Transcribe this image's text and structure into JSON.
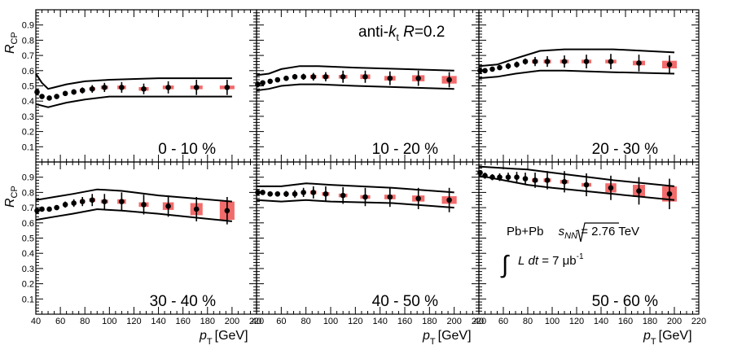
{
  "figure": {
    "y_axis_label": "R",
    "y_axis_label_sub": "CP",
    "x_axis_label": "p",
    "x_axis_label_sub": "T",
    "x_axis_unit": "[GeV]",
    "jet_label": {
      "pre": "anti-",
      "k": "k",
      "k_sub": "t",
      "r": " R",
      "val": "=0.2"
    },
    "collision": {
      "pre": "Pb+Pb",
      "s": "s",
      "s_sub": "NN",
      "post": " = 2.76 TeV"
    },
    "luminosity": {
      "L": "L",
      "dt": "dt",
      "post": " = 7 μb",
      "sup": "-1"
    },
    "colors": {
      "axis": "#000000",
      "marker": "#000000",
      "syst_box": "#f26b6b",
      "band": "#000000"
    }
  },
  "chart_data": [
    {
      "type": "scatter",
      "panel": "0 - 10 %",
      "title": "0 - 10 %",
      "xlim": [
        40,
        220
      ],
      "ylim": [
        0,
        1
      ],
      "x_ticks": [
        "40",
        "60",
        "80",
        "100",
        "120",
        "140",
        "160",
        "180",
        "200",
        "220"
      ],
      "y_ticks": [
        "0.1",
        "0.2",
        "0.3",
        "0.4",
        "0.5",
        "0.6",
        "0.7",
        "0.8",
        "0.9"
      ],
      "points": [
        {
          "x": 41,
          "y": 0.46,
          "yerr": 0.02,
          "syst": 0.01,
          "bw": 3
        },
        {
          "x": 45,
          "y": 0.43,
          "yerr": 0.015,
          "syst": 0.01,
          "bw": 3
        },
        {
          "x": 51,
          "y": 0.42,
          "yerr": 0.012,
          "syst": 0.01,
          "bw": 3
        },
        {
          "x": 57,
          "y": 0.43,
          "yerr": 0.012,
          "syst": 0.01,
          "bw": 3
        },
        {
          "x": 64,
          "y": 0.45,
          "yerr": 0.015,
          "syst": 0.01,
          "bw": 3
        },
        {
          "x": 71,
          "y": 0.46,
          "yerr": 0.018,
          "syst": 0.01,
          "bw": 4
        },
        {
          "x": 78,
          "y": 0.47,
          "yerr": 0.02,
          "syst": 0.01,
          "bw": 4
        },
        {
          "x": 86,
          "y": 0.48,
          "yerr": 0.025,
          "syst": 0.01,
          "bw": 5
        },
        {
          "x": 96,
          "y": 0.49,
          "yerr": 0.03,
          "syst": 0.012,
          "bw": 6
        },
        {
          "x": 110,
          "y": 0.49,
          "yerr": 0.035,
          "syst": 0.012,
          "bw": 7
        },
        {
          "x": 128,
          "y": 0.48,
          "yerr": 0.035,
          "syst": 0.012,
          "bw": 8
        },
        {
          "x": 148,
          "y": 0.49,
          "yerr": 0.04,
          "syst": 0.012,
          "bw": 9
        },
        {
          "x": 171,
          "y": 0.49,
          "yerr": 0.05,
          "syst": 0.012,
          "bw": 10
        },
        {
          "x": 196,
          "y": 0.49,
          "yerr": 0.05,
          "syst": 0.012,
          "bw": 12
        }
      ],
      "band_upper": [
        [
          40,
          0.58
        ],
        [
          45,
          0.52
        ],
        [
          50,
          0.48
        ],
        [
          55,
          0.49
        ],
        [
          65,
          0.51
        ],
        [
          80,
          0.53
        ],
        [
          100,
          0.54
        ],
        [
          140,
          0.55
        ],
        [
          200,
          0.55
        ]
      ],
      "band_lower": [
        [
          40,
          0.38
        ],
        [
          45,
          0.37
        ],
        [
          50,
          0.36
        ],
        [
          55,
          0.37
        ],
        [
          65,
          0.39
        ],
        [
          80,
          0.41
        ],
        [
          100,
          0.43
        ],
        [
          140,
          0.43
        ],
        [
          200,
          0.43
        ]
      ]
    },
    {
      "type": "scatter",
      "panel": "10 - 20 %",
      "title": "10 - 20 %",
      "xlim": [
        40,
        220
      ],
      "ylim": [
        0,
        1
      ],
      "x_ticks": [
        "40",
        "60",
        "80",
        "100",
        "120",
        "140",
        "160",
        "180",
        "200",
        "220"
      ],
      "y_ticks": [
        "0.1",
        "0.2",
        "0.3",
        "0.4",
        "0.5",
        "0.6",
        "0.7",
        "0.8",
        "0.9"
      ],
      "points": [
        {
          "x": 41,
          "y": 0.51,
          "yerr": 0.02,
          "syst": 0.01,
          "bw": 3
        },
        {
          "x": 45,
          "y": 0.52,
          "yerr": 0.015,
          "syst": 0.01,
          "bw": 3
        },
        {
          "x": 51,
          "y": 0.53,
          "yerr": 0.012,
          "syst": 0.01,
          "bw": 3
        },
        {
          "x": 57,
          "y": 0.54,
          "yerr": 0.012,
          "syst": 0.01,
          "bw": 3
        },
        {
          "x": 64,
          "y": 0.55,
          "yerr": 0.015,
          "syst": 0.01,
          "bw": 3
        },
        {
          "x": 71,
          "y": 0.56,
          "yerr": 0.018,
          "syst": 0.01,
          "bw": 4
        },
        {
          "x": 78,
          "y": 0.56,
          "yerr": 0.02,
          "syst": 0.01,
          "bw": 4
        },
        {
          "x": 86,
          "y": 0.56,
          "yerr": 0.025,
          "syst": 0.012,
          "bw": 5
        },
        {
          "x": 96,
          "y": 0.56,
          "yerr": 0.03,
          "syst": 0.012,
          "bw": 6
        },
        {
          "x": 110,
          "y": 0.56,
          "yerr": 0.04,
          "syst": 0.012,
          "bw": 7
        },
        {
          "x": 128,
          "y": 0.56,
          "yerr": 0.04,
          "syst": 0.015,
          "bw": 8
        },
        {
          "x": 148,
          "y": 0.55,
          "yerr": 0.045,
          "syst": 0.015,
          "bw": 9
        },
        {
          "x": 171,
          "y": 0.55,
          "yerr": 0.05,
          "syst": 0.02,
          "bw": 10
        },
        {
          "x": 196,
          "y": 0.54,
          "yerr": 0.05,
          "syst": 0.025,
          "bw": 12
        }
      ],
      "band_upper": [
        [
          40,
          0.57
        ],
        [
          50,
          0.58
        ],
        [
          60,
          0.61
        ],
        [
          75,
          0.63
        ],
        [
          90,
          0.63
        ],
        [
          120,
          0.62
        ],
        [
          160,
          0.61
        ],
        [
          200,
          0.6
        ]
      ],
      "band_lower": [
        [
          40,
          0.47
        ],
        [
          50,
          0.48
        ],
        [
          60,
          0.5
        ],
        [
          75,
          0.51
        ],
        [
          90,
          0.51
        ],
        [
          120,
          0.5
        ],
        [
          160,
          0.49
        ],
        [
          200,
          0.48
        ]
      ]
    },
    {
      "type": "scatter",
      "panel": "20 - 30 %",
      "title": "20 - 30 %",
      "xlim": [
        40,
        220
      ],
      "ylim": [
        0,
        1
      ],
      "x_ticks": [
        "40",
        "60",
        "80",
        "100",
        "120",
        "140",
        "160",
        "180",
        "200",
        "220"
      ],
      "y_ticks": [
        "0.1",
        "0.2",
        "0.3",
        "0.4",
        "0.5",
        "0.6",
        "0.7",
        "0.8",
        "0.9"
      ],
      "points": [
        {
          "x": 41,
          "y": 0.6,
          "yerr": 0.015,
          "syst": 0.01,
          "bw": 3
        },
        {
          "x": 45,
          "y": 0.6,
          "yerr": 0.015,
          "syst": 0.01,
          "bw": 3
        },
        {
          "x": 51,
          "y": 0.61,
          "yerr": 0.012,
          "syst": 0.01,
          "bw": 3
        },
        {
          "x": 57,
          "y": 0.62,
          "yerr": 0.015,
          "syst": 0.01,
          "bw": 3
        },
        {
          "x": 64,
          "y": 0.63,
          "yerr": 0.02,
          "syst": 0.01,
          "bw": 3
        },
        {
          "x": 71,
          "y": 0.64,
          "yerr": 0.02,
          "syst": 0.01,
          "bw": 4
        },
        {
          "x": 78,
          "y": 0.66,
          "yerr": 0.02,
          "syst": 0.012,
          "bw": 4
        },
        {
          "x": 86,
          "y": 0.66,
          "yerr": 0.03,
          "syst": 0.012,
          "bw": 5
        },
        {
          "x": 96,
          "y": 0.66,
          "yerr": 0.035,
          "syst": 0.012,
          "bw": 6
        },
        {
          "x": 110,
          "y": 0.66,
          "yerr": 0.04,
          "syst": 0.012,
          "bw": 7
        },
        {
          "x": 128,
          "y": 0.66,
          "yerr": 0.045,
          "syst": 0.012,
          "bw": 8
        },
        {
          "x": 148,
          "y": 0.66,
          "yerr": 0.05,
          "syst": 0.012,
          "bw": 9
        },
        {
          "x": 171,
          "y": 0.65,
          "yerr": 0.055,
          "syst": 0.015,
          "bw": 10
        },
        {
          "x": 196,
          "y": 0.64,
          "yerr": 0.06,
          "syst": 0.025,
          "bw": 12
        }
      ],
      "band_upper": [
        [
          40,
          0.63
        ],
        [
          55,
          0.64
        ],
        [
          70,
          0.68
        ],
        [
          90,
          0.73
        ],
        [
          110,
          0.74
        ],
        [
          150,
          0.74
        ],
        [
          200,
          0.72
        ]
      ],
      "band_lower": [
        [
          40,
          0.55
        ],
        [
          55,
          0.56
        ],
        [
          70,
          0.58
        ],
        [
          90,
          0.6
        ],
        [
          110,
          0.6
        ],
        [
          150,
          0.59
        ],
        [
          200,
          0.58
        ]
      ]
    },
    {
      "type": "scatter",
      "panel": "30 - 40 %",
      "title": "30 - 40 %",
      "xlim": [
        40,
        220
      ],
      "ylim": [
        0,
        1
      ],
      "x_ticks": [
        "40",
        "60",
        "80",
        "100",
        "120",
        "140",
        "160",
        "180",
        "200",
        "220"
      ],
      "y_ticks": [
        "0.1",
        "0.2",
        "0.3",
        "0.4",
        "0.5",
        "0.6",
        "0.7",
        "0.8",
        "0.9"
      ],
      "points": [
        {
          "x": 41,
          "y": 0.68,
          "yerr": 0.015,
          "syst": 0.01,
          "bw": 3
        },
        {
          "x": 45,
          "y": 0.69,
          "yerr": 0.015,
          "syst": 0.01,
          "bw": 3
        },
        {
          "x": 51,
          "y": 0.69,
          "yerr": 0.015,
          "syst": 0.01,
          "bw": 3
        },
        {
          "x": 57,
          "y": 0.7,
          "yerr": 0.015,
          "syst": 0.01,
          "bw": 3
        },
        {
          "x": 64,
          "y": 0.72,
          "yerr": 0.02,
          "syst": 0.01,
          "bw": 3
        },
        {
          "x": 71,
          "y": 0.73,
          "yerr": 0.025,
          "syst": 0.01,
          "bw": 4
        },
        {
          "x": 78,
          "y": 0.74,
          "yerr": 0.03,
          "syst": 0.012,
          "bw": 4
        },
        {
          "x": 86,
          "y": 0.75,
          "yerr": 0.04,
          "syst": 0.012,
          "bw": 5
        },
        {
          "x": 96,
          "y": 0.74,
          "yerr": 0.05,
          "syst": 0.012,
          "bw": 6
        },
        {
          "x": 110,
          "y": 0.74,
          "yerr": 0.06,
          "syst": 0.015,
          "bw": 7
        },
        {
          "x": 128,
          "y": 0.72,
          "yerr": 0.065,
          "syst": 0.015,
          "bw": 8
        },
        {
          "x": 148,
          "y": 0.71,
          "yerr": 0.07,
          "syst": 0.025,
          "bw": 9
        },
        {
          "x": 171,
          "y": 0.69,
          "yerr": 0.08,
          "syst": 0.04,
          "bw": 10
        },
        {
          "x": 196,
          "y": 0.68,
          "yerr": 0.09,
          "syst": 0.06,
          "bw": 12
        }
      ],
      "band_upper": [
        [
          40,
          0.75
        ],
        [
          55,
          0.77
        ],
        [
          70,
          0.79
        ],
        [
          90,
          0.82
        ],
        [
          110,
          0.81
        ],
        [
          140,
          0.78
        ],
        [
          200,
          0.74
        ]
      ],
      "band_lower": [
        [
          40,
          0.62
        ],
        [
          55,
          0.64
        ],
        [
          70,
          0.66
        ],
        [
          90,
          0.69
        ],
        [
          110,
          0.68
        ],
        [
          140,
          0.66
        ],
        [
          200,
          0.61
        ]
      ]
    },
    {
      "type": "scatter",
      "panel": "40 - 50 %",
      "title": "40 - 50 %",
      "xlim": [
        40,
        220
      ],
      "ylim": [
        0,
        1
      ],
      "x_ticks": [
        "40",
        "60",
        "80",
        "100",
        "120",
        "140",
        "160",
        "180",
        "200",
        "220"
      ],
      "y_ticks": [
        "0.1",
        "0.2",
        "0.3",
        "0.4",
        "0.5",
        "0.6",
        "0.7",
        "0.8",
        "0.9"
      ],
      "points": [
        {
          "x": 41,
          "y": 0.8,
          "yerr": 0.015,
          "syst": 0.01,
          "bw": 3
        },
        {
          "x": 45,
          "y": 0.8,
          "yerr": 0.015,
          "syst": 0.01,
          "bw": 3
        },
        {
          "x": 51,
          "y": 0.79,
          "yerr": 0.015,
          "syst": 0.01,
          "bw": 3
        },
        {
          "x": 57,
          "y": 0.79,
          "yerr": 0.015,
          "syst": 0.01,
          "bw": 3
        },
        {
          "x": 64,
          "y": 0.79,
          "yerr": 0.02,
          "syst": 0.01,
          "bw": 3
        },
        {
          "x": 71,
          "y": 0.79,
          "yerr": 0.025,
          "syst": 0.01,
          "bw": 4
        },
        {
          "x": 78,
          "y": 0.8,
          "yerr": 0.03,
          "syst": 0.01,
          "bw": 4
        },
        {
          "x": 86,
          "y": 0.8,
          "yerr": 0.04,
          "syst": 0.012,
          "bw": 5
        },
        {
          "x": 96,
          "y": 0.79,
          "yerr": 0.05,
          "syst": 0.012,
          "bw": 6
        },
        {
          "x": 110,
          "y": 0.78,
          "yerr": 0.055,
          "syst": 0.012,
          "bw": 7
        },
        {
          "x": 128,
          "y": 0.77,
          "yerr": 0.06,
          "syst": 0.012,
          "bw": 8
        },
        {
          "x": 148,
          "y": 0.77,
          "yerr": 0.065,
          "syst": 0.015,
          "bw": 9
        },
        {
          "x": 171,
          "y": 0.76,
          "yerr": 0.07,
          "syst": 0.02,
          "bw": 10
        },
        {
          "x": 196,
          "y": 0.75,
          "yerr": 0.08,
          "syst": 0.025,
          "bw": 12
        }
      ],
      "band_upper": [
        [
          40,
          0.84
        ],
        [
          60,
          0.84
        ],
        [
          80,
          0.86
        ],
        [
          100,
          0.85
        ],
        [
          150,
          0.83
        ],
        [
          200,
          0.8
        ]
      ],
      "band_lower": [
        [
          40,
          0.75
        ],
        [
          60,
          0.74
        ],
        [
          80,
          0.75
        ],
        [
          100,
          0.74
        ],
        [
          150,
          0.73
        ],
        [
          200,
          0.7
        ]
      ]
    },
    {
      "type": "scatter",
      "panel": "50 - 60 %",
      "title": "50 - 60 %",
      "xlim": [
        40,
        220
      ],
      "ylim": [
        0,
        1
      ],
      "x_ticks": [
        "40",
        "60",
        "80",
        "100",
        "120",
        "140",
        "160",
        "180",
        "200",
        "220"
      ],
      "y_ticks": [
        "0.1",
        "0.2",
        "0.3",
        "0.4",
        "0.5",
        "0.6",
        "0.7",
        "0.8",
        "0.9"
      ],
      "points": [
        {
          "x": 41,
          "y": 0.93,
          "yerr": 0.015,
          "syst": 0.01,
          "bw": 3
        },
        {
          "x": 45,
          "y": 0.91,
          "yerr": 0.02,
          "syst": 0.01,
          "bw": 3
        },
        {
          "x": 51,
          "y": 0.9,
          "yerr": 0.02,
          "syst": 0.01,
          "bw": 3
        },
        {
          "x": 57,
          "y": 0.9,
          "yerr": 0.025,
          "syst": 0.01,
          "bw": 3
        },
        {
          "x": 64,
          "y": 0.9,
          "yerr": 0.03,
          "syst": 0.01,
          "bw": 3
        },
        {
          "x": 71,
          "y": 0.9,
          "yerr": 0.035,
          "syst": 0.01,
          "bw": 4
        },
        {
          "x": 78,
          "y": 0.89,
          "yerr": 0.04,
          "syst": 0.01,
          "bw": 4
        },
        {
          "x": 86,
          "y": 0.88,
          "yerr": 0.05,
          "syst": 0.012,
          "bw": 5
        },
        {
          "x": 96,
          "y": 0.88,
          "yerr": 0.06,
          "syst": 0.012,
          "bw": 6
        },
        {
          "x": 110,
          "y": 0.87,
          "yerr": 0.07,
          "syst": 0.012,
          "bw": 7
        },
        {
          "x": 128,
          "y": 0.85,
          "yerr": 0.075,
          "syst": 0.012,
          "bw": 8
        },
        {
          "x": 148,
          "y": 0.83,
          "yerr": 0.08,
          "syst": 0.03,
          "bw": 9
        },
        {
          "x": 171,
          "y": 0.81,
          "yerr": 0.09,
          "syst": 0.04,
          "bw": 10
        },
        {
          "x": 196,
          "y": 0.79,
          "yerr": 0.1,
          "syst": 0.05,
          "bw": 12
        }
      ],
      "band_upper": [
        [
          40,
          0.97
        ],
        [
          60,
          0.96
        ],
        [
          80,
          0.95
        ],
        [
          100,
          0.93
        ],
        [
          150,
          0.88
        ],
        [
          200,
          0.84
        ]
      ],
      "band_lower": [
        [
          40,
          0.91
        ],
        [
          60,
          0.88
        ],
        [
          80,
          0.85
        ],
        [
          100,
          0.83
        ],
        [
          150,
          0.79
        ],
        [
          200,
          0.75
        ]
      ]
    }
  ]
}
